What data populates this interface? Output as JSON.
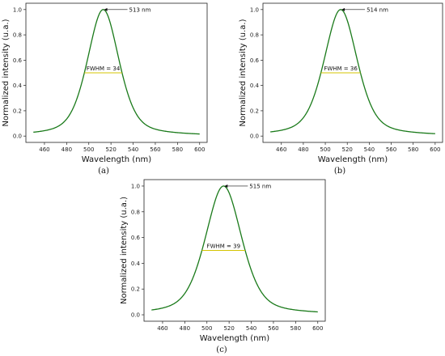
{
  "chart_data": [
    {
      "type": "line",
      "panel_label": "(a)",
      "xlabel": "Wavelength (nm)",
      "ylabel": "Normalized intensity (u.a.)",
      "xlim": [
        450,
        600
      ],
      "ylim": [
        0.0,
        1.0
      ],
      "xticks": [
        "460",
        "480",
        "500",
        "520",
        "540",
        "560",
        "580",
        "600"
      ],
      "yticks": [
        "0.0",
        "0.2",
        "0.4",
        "0.6",
        "0.8",
        "1.0"
      ],
      "peak": 513,
      "peak_label": "513 nm",
      "fwhm": 34,
      "fwhm_label": "FWHM = 34",
      "line_color": "#1a7a1a",
      "fwhm_color": "#d4c400"
    },
    {
      "type": "line",
      "panel_label": "(b)",
      "xlabel": "Wavelength (nm)",
      "ylabel": "Normalized intensity (u.a.)",
      "xlim": [
        450,
        600
      ],
      "ylim": [
        0.0,
        1.0
      ],
      "xticks": [
        "460",
        "480",
        "500",
        "520",
        "540",
        "560",
        "580",
        "600"
      ],
      "yticks": [
        "0.0",
        "0.2",
        "0.4",
        "0.6",
        "0.8",
        "1.0"
      ],
      "peak": 514,
      "peak_label": "514 nm",
      "fwhm": 36,
      "fwhm_label": "FWHM = 36",
      "line_color": "#1a7a1a",
      "fwhm_color": "#d4c400"
    },
    {
      "type": "line",
      "panel_label": "(c)",
      "xlabel": "Wavelength (nm)",
      "ylabel": "Normalized intensity (u.a.)",
      "xlim": [
        450,
        600
      ],
      "ylim": [
        0.0,
        1.0
      ],
      "xticks": [
        "460",
        "480",
        "500",
        "520",
        "540",
        "560",
        "580",
        "600"
      ],
      "yticks": [
        "0.0",
        "0.2",
        "0.4",
        "0.6",
        "0.8",
        "1.0"
      ],
      "peak": 515,
      "peak_label": "515 nm",
      "fwhm": 39,
      "fwhm_label": "FWHM = 39",
      "line_color": "#1a7a1a",
      "fwhm_color": "#d4c400"
    }
  ]
}
